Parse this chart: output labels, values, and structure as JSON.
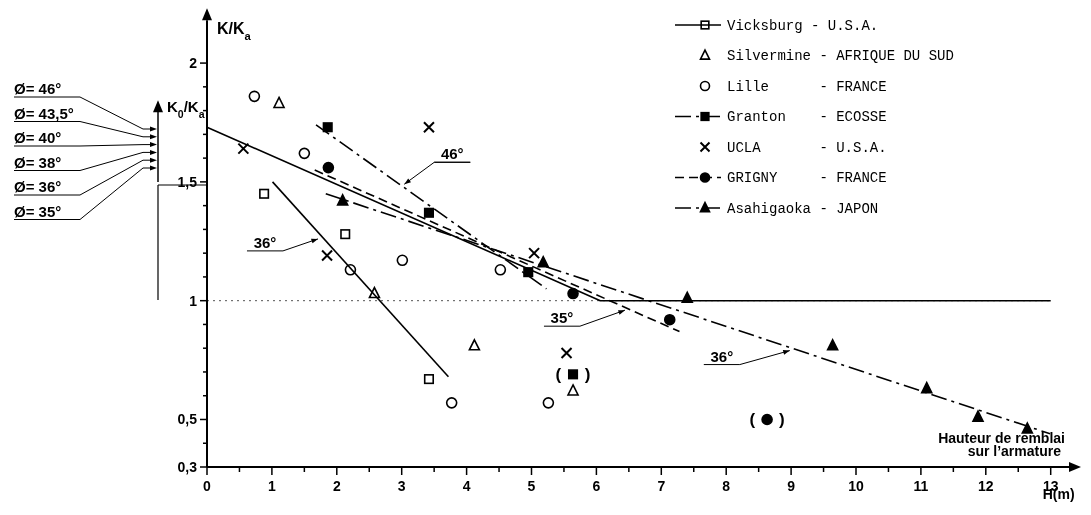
{
  "chart_data": {
    "type": "scatter",
    "xlabel": "H(m)",
    "ylabel": "K/K$_{a}$",
    "xlim": [
      0,
      13
    ],
    "ylim": [
      0.3,
      2.18
    ],
    "xticks": [
      0,
      {
        "value": 0.5,
        "label": null
      },
      1,
      {
        "value": 1.5,
        "label": null
      },
      2,
      {
        "value": 2.5,
        "label": null
      },
      3,
      {
        "value": 3.5,
        "label": null
      },
      4,
      {
        "value": 4.5,
        "label": null
      },
      5,
      {
        "value": 5.5,
        "label": null
      },
      6,
      {
        "value": 6.5,
        "label": null
      },
      7,
      {
        "value": 7.5,
        "label": null
      },
      8,
      {
        "value": 8.5,
        "label": null
      },
      9,
      {
        "value": 9.5,
        "label": null
      },
      10,
      {
        "value": 10.5,
        "label": null
      },
      11,
      {
        "value": 11.5,
        "label": null
      },
      12,
      {
        "value": 12.5,
        "label": null
      },
      13
    ],
    "yticks": [
      {
        "value": 0.3,
        "label": "0,3"
      },
      {
        "value": 0.4,
        "label": null
      },
      {
        "value": 0.5,
        "label": "0,5"
      },
      {
        "value": 0.6,
        "label": null
      },
      {
        "value": 0.7,
        "label": null
      },
      {
        "value": 0.8,
        "label": null
      },
      {
        "value": 0.9,
        "label": null
      },
      1,
      {
        "value": 1.1,
        "label": null
      },
      {
        "value": 1.2,
        "label": null
      },
      {
        "value": 1.3,
        "label": null
      },
      {
        "value": 1.4,
        "label": null
      },
      {
        "value": 1.5,
        "label": "1,5"
      },
      {
        "value": 1.6,
        "label": null
      },
      {
        "value": 1.7,
        "label": null
      },
      {
        "value": 1.8,
        "label": null
      },
      {
        "value": 1.9,
        "label": null
      },
      2
    ],
    "grid": false,
    "legend": "top right",
    "ref_lines": [
      {
        "axis": "y",
        "value": 1,
        "line_style": "dotted",
        "color": "#555555"
      }
    ],
    "series": [
      {
        "name": "Vicksburg - U.S.A.",
        "color": "#000000",
        "marker": "square",
        "line_style": "solid",
        "x": [
          0.88,
          2.13,
          3.42
        ],
        "values": [
          1.45,
          1.28,
          0.67
        ]
      },
      {
        "name": "Silvermine - AFRIQUE DU SUD",
        "color": "#000000",
        "marker": "triangle",
        "x": [
          1.11,
          2.58,
          4.12,
          5.64
        ],
        "values": [
          1.83,
          1.03,
          0.81,
          0.62
        ]
      },
      {
        "name": "Lille      - FRANCE",
        "color": "#000000",
        "marker": "circle",
        "x": [
          0.73,
          1.5,
          2.21,
          3.01,
          4.52,
          3.77,
          5.26
        ],
        "values": [
          1.86,
          1.62,
          1.13,
          1.17,
          1.13,
          0.57,
          0.57
        ]
      },
      {
        "name": "Granton    - ECOSSE",
        "color": "#000000",
        "marker": "square",
        "line_style": "dashdot",
        "x": [
          1.86,
          3.42,
          4.95,
          5.64
        ],
        "values": [
          1.73,
          1.37,
          1.12,
          0.69
        ]
      },
      {
        "name": "UCLA       - U.S.A.",
        "color": "#000000",
        "marker": "cross",
        "x": [
          0.56,
          1.85,
          3.42,
          5.04,
          5.54
        ],
        "values": [
          1.64,
          1.19,
          1.73,
          1.2,
          0.78
        ]
      },
      {
        "name": "GRIGNY     - FRANCE",
        "color": "#000000",
        "marker": "circle",
        "line_style": "dashed",
        "x": [
          1.87,
          5.64,
          7.13,
          8.63
        ],
        "values": [
          1.56,
          1.03,
          0.92,
          0.5
        ]
      },
      {
        "name": "Asahigaoka - JAPON",
        "color": "#000000",
        "marker": "triangle",
        "line_style": "dashdot",
        "x": [
          2.09,
          5.18,
          7.4,
          9.64,
          11.09,
          11.88,
          12.64
        ],
        "values": [
          1.42,
          1.16,
          1.01,
          0.81,
          0.63,
          0.51,
          0.46
        ]
      },
      {
        "type": "line",
        "color": "#000000",
        "line_style": "solid",
        "x": [
          1.01,
          3.72
        ],
        "values": [
          1.5,
          0.68
        ]
      },
      {
        "type": "line",
        "color": "#000000",
        "line_style": "solid",
        "x": [
          0,
          6.06,
          13
        ],
        "values": [
          1.73,
          1.0,
          1.0
        ]
      },
      {
        "type": "line",
        "color": "#000000",
        "line_style": "dashdot",
        "x": [
          1.68,
          5.23
        ],
        "values": [
          1.74,
          1.05
        ]
      },
      {
        "type": "line",
        "color": "#000000",
        "line_style": "dashed",
        "x": [
          1.66,
          7.28
        ],
        "values": [
          1.55,
          0.87
        ]
      },
      {
        "type": "line",
        "color": "#000000",
        "line_style": "dashdot",
        "x": [
          1.83,
          12.99
        ],
        "values": [
          1.45,
          0.44
        ]
      }
    ],
    "annotations": [
      {
        "text": "46°",
        "x": 3.04,
        "y": 1.49
      },
      {
        "text": "36°",
        "x": 1.71,
        "y": 1.26
      },
      {
        "text": "35°",
        "x": 6.44,
        "y": 0.96
      },
      {
        "text": "36°",
        "x": 8.98,
        "y": 0.79
      },
      {
        "text": "(     )",
        "x": 5.64,
        "y": 0.69
      },
      {
        "text": "(     )",
        "x": 8.63,
        "y": 0.5
      },
      "Hauteur de remblai sur l’armature",
      "K$_{0}$/K$_{a}$",
      "Ø= 46°",
      "Ø= 43,5°",
      "Ø= 40°",
      "Ø= 38°",
      "Ø= 36°",
      "Ø= 35°"
    ]
  }
}
